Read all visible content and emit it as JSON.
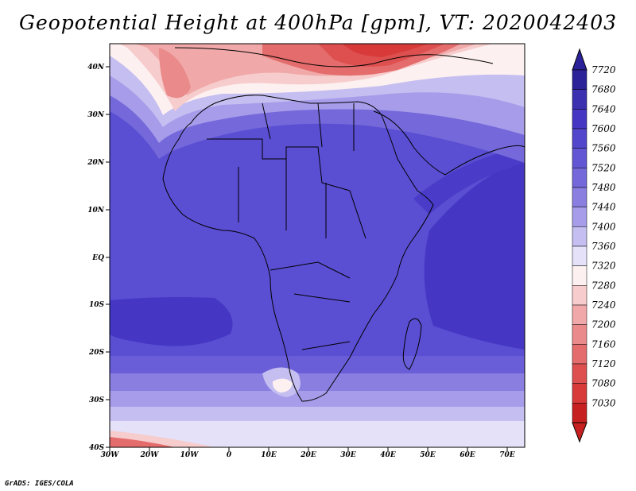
{
  "title": "Geopotential Height at 400hPa [gpm], VT: 2020042403",
  "credit": "GrADS: IGES/COLA",
  "map": {
    "lon_labels": [
      "30W",
      "20W",
      "10W",
      "0",
      "10E",
      "20E",
      "30E",
      "40E",
      "50E",
      "60E",
      "70E"
    ],
    "lat_labels": [
      "40N",
      "30N",
      "20N",
      "10N",
      "EQ",
      "10S",
      "20S",
      "30S",
      "40S"
    ]
  },
  "colorbar": {
    "labels": [
      "7720",
      "7680",
      "7640",
      "7600",
      "7560",
      "7520",
      "7480",
      "7440",
      "7400",
      "7360",
      "7320",
      "7280",
      "7240",
      "7200",
      "7160",
      "7120",
      "7080",
      "7030"
    ],
    "colors": [
      "#2b2299",
      "#3a30b0",
      "#4537c4",
      "#5246cc",
      "#6256d4",
      "#7468da",
      "#8a7fe1",
      "#a69ce9",
      "#c4bef1",
      "#e4e1f8",
      "#fdf0f0",
      "#f7cccc",
      "#f0a8a8",
      "#ea8a8a",
      "#e46c6c",
      "#de5050",
      "#d83a3a",
      "#c72020"
    ]
  }
}
